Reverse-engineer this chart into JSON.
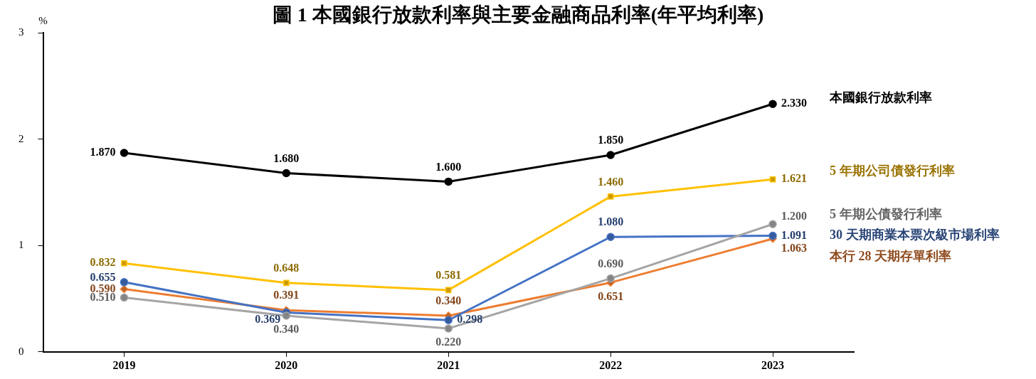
{
  "chart_data": {
    "type": "line",
    "title": "圖 1 本國銀行放款利率與主要金融商品利率(年平均利率)",
    "ylabel": "%",
    "categories": [
      "2019",
      "2020",
      "2021",
      "2022",
      "2023"
    ],
    "ylim": [
      0,
      3
    ],
    "yticks": [
      0,
      1,
      2,
      3
    ],
    "grid": false,
    "legend": false,
    "series": [
      {
        "name": "本國銀行放款利率",
        "color": "#000000",
        "marker": "circle",
        "values": [
          1.87,
          1.68,
          1.6,
          1.85,
          2.33
        ],
        "value_labels": [
          "1.870",
          "1.680",
          "1.600",
          "1.850",
          "2.330"
        ]
      },
      {
        "name": "5 年期公司債發行利率",
        "color": "#ffc000",
        "marker": "square",
        "values": [
          0.832,
          0.648,
          0.581,
          1.46,
          1.621
        ],
        "value_labels": [
          "0.832",
          "0.648",
          "0.581",
          "1.460",
          "1.621"
        ]
      },
      {
        "name": "5 年期公債發行利率",
        "color": "#a5a5a5",
        "marker": "circle",
        "values": [
          0.51,
          0.34,
          0.22,
          0.69,
          1.2
        ],
        "value_labels": [
          "0.510",
          "0.340",
          "0.220",
          "0.690",
          "1.200"
        ]
      },
      {
        "name": "30 天期商業本票次級市場利率",
        "color": "#4472c4",
        "marker": "circle",
        "values": [
          0.655,
          0.369,
          0.298,
          1.08,
          1.091
        ],
        "value_labels": [
          "0.655",
          "0.369",
          "0.298",
          "1.080",
          "1.091"
        ]
      },
      {
        "name": "本行 28 天期存單利率",
        "color": "#ed7d31",
        "marker": "diamond",
        "values": [
          0.59,
          0.391,
          0.34,
          0.651,
          1.063
        ],
        "value_labels": [
          "0.590",
          "0.391",
          "0.340",
          "0.651",
          "1.063"
        ]
      }
    ]
  }
}
